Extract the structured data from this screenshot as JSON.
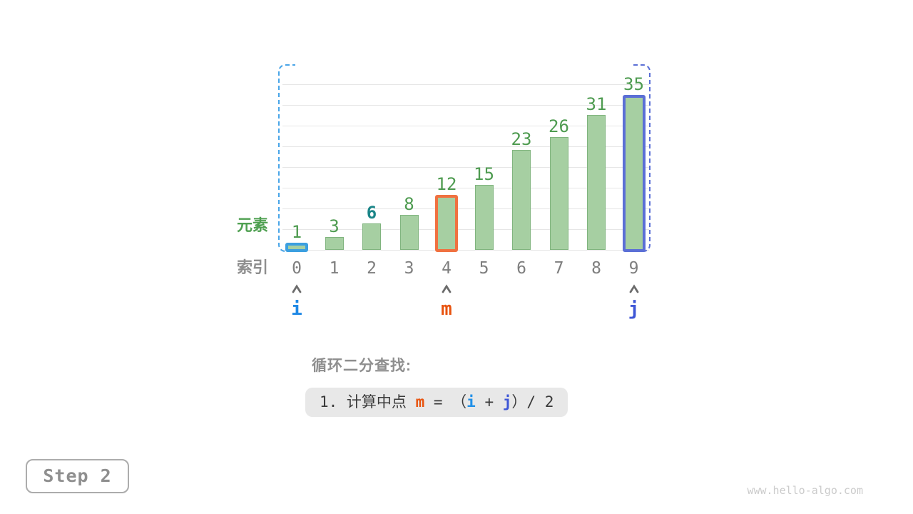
{
  "watermark": "www.hello-algo.com",
  "step_badge": "Step 2",
  "caption": {
    "heading": "循环二分查找:",
    "formula": {
      "prefix": "1. 计算中点 ",
      "m": "m",
      "eq": " = （",
      "i": "i",
      "plus": " + ",
      "j": "j",
      "suffix": "）/ 2"
    }
  },
  "chart_data": {
    "type": "bar",
    "categories": [
      "0",
      "1",
      "2",
      "3",
      "4",
      "5",
      "6",
      "7",
      "8",
      "9"
    ],
    "values": [
      1,
      3,
      6,
      8,
      12,
      15,
      23,
      26,
      31,
      35
    ],
    "xlabel": "索引",
    "ylabel": "元素",
    "ylim": [
      0,
      42
    ],
    "grid": true,
    "legend": "none",
    "bar_color": "#A6CFA2",
    "bar_border_color": "#80B47E",
    "value_label_color": "#4E9B50",
    "index_label_color": "#7E7E7E",
    "emphasized_value": {
      "index": 2,
      "value": 6,
      "color": "#1A8588"
    },
    "highlighted_bars": [
      {
        "index": 0,
        "color": "#3B9FE0"
      },
      {
        "index": 4,
        "color": "#F07140"
      },
      {
        "index": 9,
        "color": "#5B6FD6"
      }
    ],
    "search_range_brackets": {
      "left_color": "#49A5E8",
      "right_color": "#5B6FD6"
    },
    "pointers": [
      {
        "label": "i",
        "index": 0,
        "color": "#1E88E5"
      },
      {
        "label": "m",
        "index": 4,
        "color": "#E8530E"
      },
      {
        "label": "j",
        "index": 9,
        "color": "#3E56D6"
      }
    ],
    "caret_color": "#6B6B6B"
  }
}
